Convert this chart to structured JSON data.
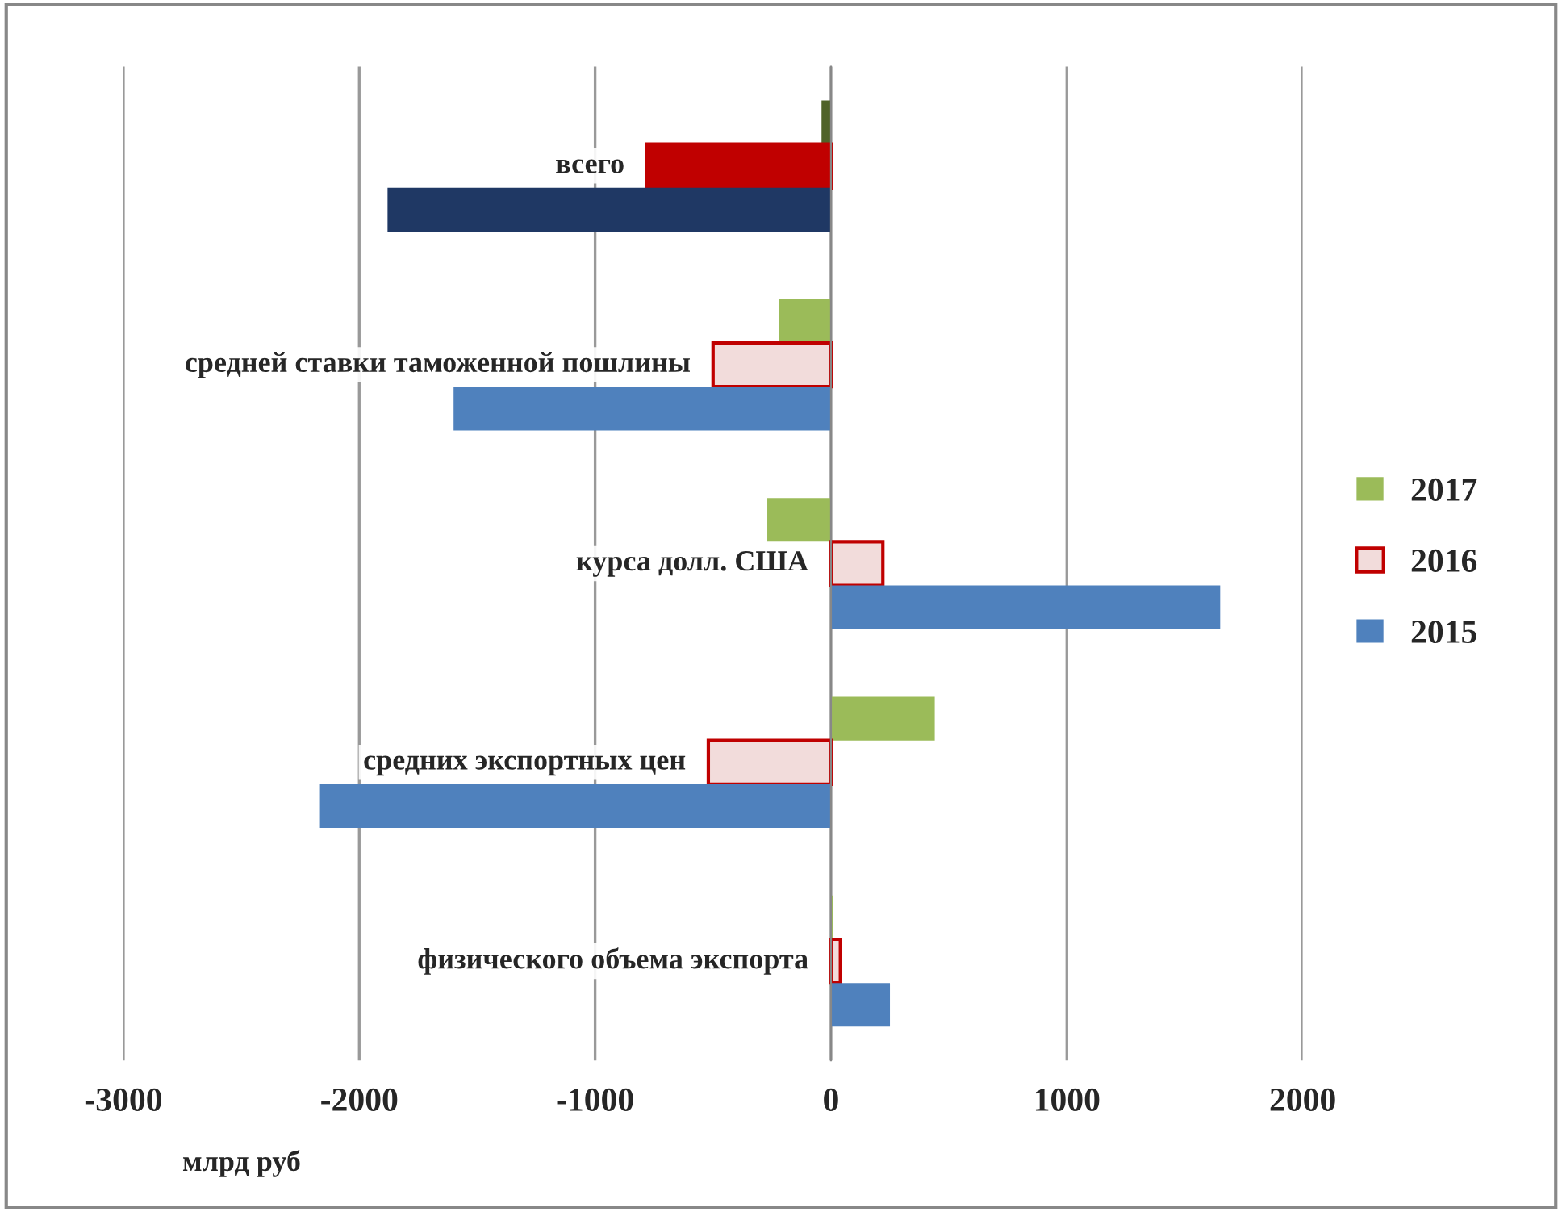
{
  "chart_data": {
    "type": "bar",
    "orientation": "horizontal",
    "xlabel": "млрд руб",
    "categories": [
      "всего",
      "средней ставки таможенной пошлины",
      "курса долл. США",
      "средних экспортных цен",
      "физического объема экспорта"
    ],
    "series": [
      {
        "name": "2017",
        "color": "#9bbb59",
        "colors": [
          "#4f6228",
          "#9bbb59",
          "#9bbb59",
          "#9bbb59",
          "#9bbb59"
        ],
        "values": [
          -40,
          -220,
          -270,
          440,
          10
        ]
      },
      {
        "name": "2016",
        "color": "#f2dcdb",
        "colors": [
          "#c00000",
          "#f2dcdb",
          "#f2dcdb",
          "#f2dcdb",
          "#f2dcdb"
        ],
        "values": [
          -780,
          -500,
          220,
          -520,
          40
        ]
      },
      {
        "name": "2015",
        "color": "#4f81bd",
        "colors": [
          "#1f3864",
          "#4f81bd",
          "#4f81bd",
          "#4f81bd",
          "#4f81bd"
        ],
        "values": [
          -1880,
          -1600,
          1650,
          -2170,
          250
        ]
      }
    ],
    "xlim": [
      -3000,
      2000
    ],
    "xticks": [
      -3000,
      -2000,
      -1000,
      0,
      1000,
      2000
    ],
    "grid": "x",
    "legend": "right"
  }
}
